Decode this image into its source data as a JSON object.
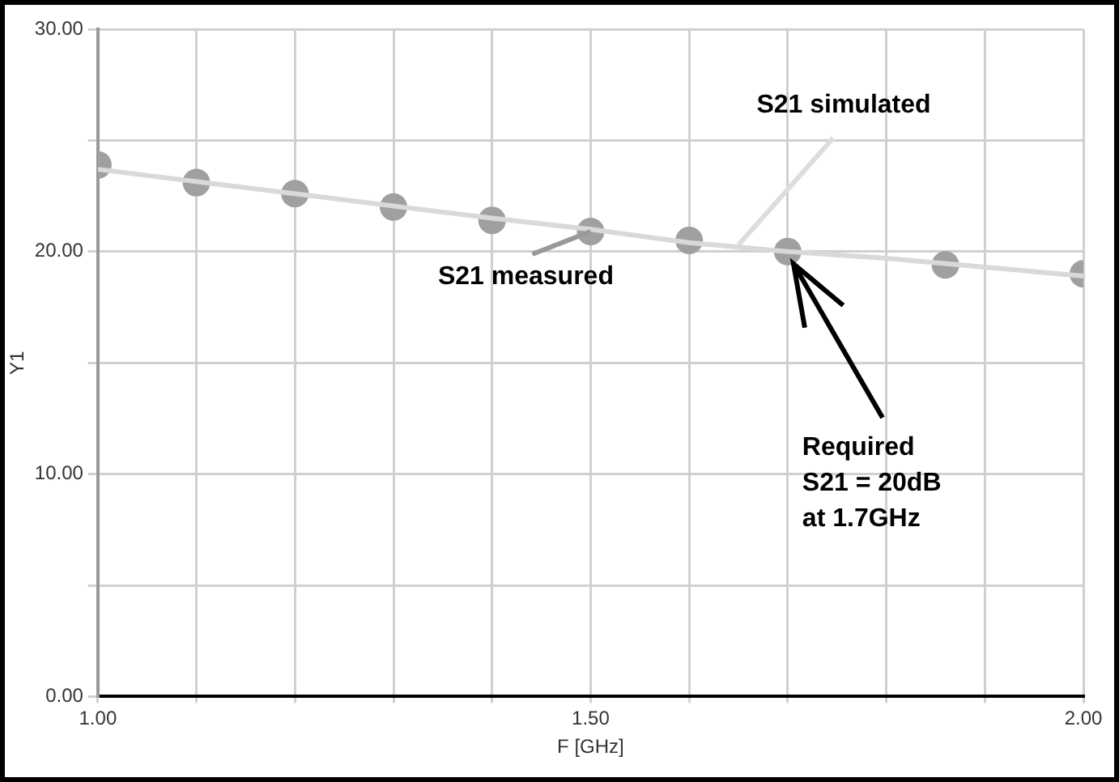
{
  "chart_data": {
    "type": "scatter",
    "xlabel": "F [GHz]",
    "ylabel": "Y1",
    "xlim": [
      1.0,
      2.0
    ],
    "xticks": [
      {
        "value": 1.0,
        "label": "1.00"
      },
      {
        "value": 1.1,
        "label": null
      },
      {
        "value": 1.2,
        "label": null
      },
      {
        "value": 1.3,
        "label": null
      },
      {
        "value": 1.4,
        "label": null
      },
      {
        "value": 1.5,
        "label": "1.50"
      },
      {
        "value": 1.6,
        "label": null
      },
      {
        "value": 1.7,
        "label": null
      },
      {
        "value": 1.8,
        "label": null
      },
      {
        "value": 1.9,
        "label": null
      },
      {
        "value": 2.0,
        "label": "2.00"
      }
    ],
    "ylim": [
      0,
      30
    ],
    "yticks": [
      {
        "value": 0,
        "label": "0.00"
      },
      {
        "value": 5,
        "label": null
      },
      {
        "value": 10,
        "label": "10.00"
      },
      {
        "value": 15,
        "label": null
      },
      {
        "value": 20,
        "label": "20.00"
      },
      {
        "value": 25,
        "label": null
      },
      {
        "value": 30,
        "label": "30.00"
      }
    ],
    "grid": true,
    "legend": false,
    "series": [
      {
        "type": "line",
        "color": "#d9d9d9",
        "marker": "none",
        "x": [
          1.0,
          1.2,
          1.4,
          1.5,
          1.6,
          1.7,
          1.8,
          1.9,
          2.0
        ],
        "values": [
          23.7,
          22.6,
          21.5,
          21.0,
          20.4,
          20.0,
          19.7,
          19.3,
          18.9
        ]
      },
      {
        "type": "scatter",
        "color": "#a0a0a0",
        "marker": "circle",
        "x": [
          1.0,
          1.1,
          1.2,
          1.3,
          1.4,
          1.5,
          1.6,
          1.7,
          1.86,
          2.0
        ],
        "values": [
          23.9,
          23.1,
          22.6,
          22.0,
          21.4,
          20.9,
          20.5,
          20.0,
          19.4,
          19.0
        ]
      }
    ],
    "annotations": [
      {
        "text": "S21 measured",
        "x": 1.5,
        "y": 20.9
      },
      {
        "text": "S21 simulated",
        "x": 1.65,
        "y": 20.3
      },
      {
        "text": "Required\nS21 = 20dB\nat 1.7GHz",
        "x": 1.7,
        "y": 20.0
      }
    ]
  }
}
